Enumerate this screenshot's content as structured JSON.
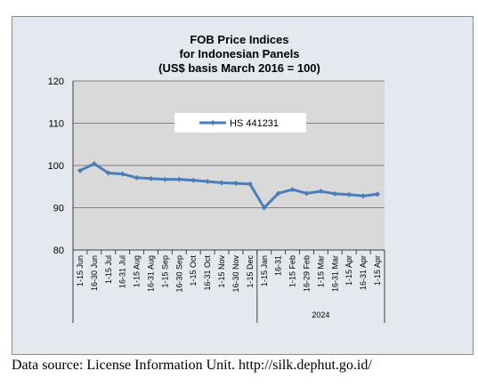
{
  "chart_data": {
    "type": "line",
    "title_lines": [
      "FOB Price Indices",
      "for Indonesian Panels",
      "(US$ basis March 2016 = 100)"
    ],
    "ylim": [
      80,
      120
    ],
    "yticks": [
      "80",
      "90",
      "100",
      "110",
      "120"
    ],
    "ytick_values": [
      80,
      90,
      100,
      110,
      120
    ],
    "grid": true,
    "legend_position": "top-left inside plot",
    "categories": [
      "1-15 Jun",
      "16-30 Jun",
      "1-15 Jul",
      "16-31 Jul",
      "1-15 Aug",
      "16-31 Aug",
      "1-15 Sep",
      "16-30 Sep",
      "1-15 Oct",
      "16-31 Oct",
      "1-15 Nov",
      "16-30 Nov",
      "1-15 Dec",
      "1-15 Jan",
      "16-31",
      "1-15 Feb",
      "16-29 Feb",
      "1-15 Mar",
      "16-31 Mar",
      "1-15 Apr",
      "16-31 Apr",
      "1-15 Apr"
    ],
    "year_groups": [
      {
        "label": "",
        "start": 0,
        "end": 12
      },
      {
        "label": "2024",
        "start": 13,
        "end": 21
      }
    ],
    "series": [
      {
        "name": "HS 441231",
        "color": "#4a7ebb",
        "values": [
          98.8,
          100.4,
          98.2,
          98.0,
          97.1,
          96.9,
          96.7,
          96.7,
          96.5,
          96.2,
          95.9,
          95.8,
          95.6,
          90.0,
          93.4,
          94.3,
          93.4,
          93.9,
          93.3,
          93.1,
          92.8,
          93.2
        ]
      }
    ]
  },
  "footer": {
    "source": "Data source: License Information Unit. http://silk.dephut.go.id/"
  }
}
